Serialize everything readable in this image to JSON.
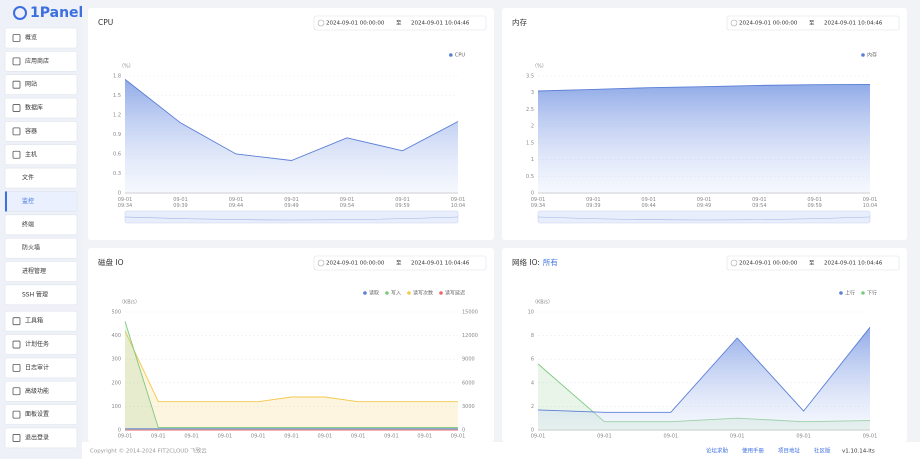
{
  "sidebar": {
    "logo": "1Panel",
    "items": [
      "概览",
      "应用商店",
      "网站",
      "数据库",
      "容器",
      "主机",
      "文件",
      "监控",
      "终端",
      "防火墙",
      "进程管理",
      "SSH 管理",
      "工具箱",
      "计划任务",
      "日志审计",
      "高级功能",
      "面板设置",
      "退出登录"
    ]
  },
  "chart_data": [
    {
      "type": "line",
      "title": "CPU",
      "range": [
        "2024-09-01 00:00:00",
        "至",
        "2024-09-01 10:04:46"
      ],
      "y_label": "（%）",
      "categories": [
        "09-01 09:34",
        "09-01 09:39",
        "09-01 09:44",
        "09-01 09:49",
        "09-01 09:54",
        "09-01 09:59",
        "09-01 10:04"
      ],
      "ylim": [
        0,
        1.8
      ],
      "yticks": [
        0,
        0.3,
        0.6,
        0.9,
        1.2,
        1.5,
        1.8
      ],
      "series": [
        {
          "name": "CPU",
          "color": "#5b7fd6",
          "values": [
            1.75,
            1.08,
            0.6,
            0.5,
            0.85,
            0.65,
            1.1
          ]
        }
      ]
    },
    {
      "type": "line",
      "title": "内存",
      "range": [
        "2024-09-01 00:00:00",
        "至",
        "2024-09-01 10:04:46"
      ],
      "y_label": "（%）",
      "categories": [
        "09-01 09:34",
        "09-01 09:39",
        "09-01 09:44",
        "09-01 09:49",
        "09-01 09:54",
        "09-01 09:59",
        "09-01 10:04"
      ],
      "ylim": [
        0,
        3.5
      ],
      "yticks": [
        0,
        0.5,
        1,
        1.5,
        2,
        2.5,
        3,
        3.5
      ],
      "series": [
        {
          "name": "内存",
          "color": "#5b7fd6",
          "values": [
            3.05,
            3.1,
            3.15,
            3.18,
            3.22,
            3.24,
            3.25
          ]
        }
      ]
    },
    {
      "type": "line",
      "title": "磁盘 IO",
      "range": [
        "2024-09-01 00:00:00",
        "至",
        "2024-09-01 10:04:46"
      ],
      "y_label": "（KB/s）",
      "categories": [
        "09-01",
        "09-01",
        "09-01",
        "09-01",
        "09-01",
        "09-01",
        "09-01",
        "09-01",
        "09-01",
        "09-01",
        "09-01"
      ],
      "ylim": [
        0,
        500
      ],
      "yticks": [
        0,
        100,
        200,
        300,
        400,
        500
      ],
      "y2lim": [
        0,
        15000
      ],
      "y2ticks": [
        0,
        3000,
        6000,
        9000,
        12000,
        15000
      ],
      "series": [
        {
          "name": "读取",
          "color": "#5b7fd6",
          "values": [
            5,
            5,
            5,
            5,
            5,
            5,
            5,
            5,
            5,
            5,
            5
          ]
        },
        {
          "name": "写入",
          "color": "#7fc97f",
          "values": [
            460,
            10,
            10,
            10,
            10,
            10,
            10,
            10,
            10,
            10,
            10
          ]
        },
        {
          "name": "读写次数",
          "color": "#f2c94c",
          "axis": "y2",
          "values": [
            12600,
            3600,
            3600,
            3600,
            3600,
            4200,
            4200,
            3600,
            3600,
            3600,
            3600
          ]
        },
        {
          "name": "读写延迟",
          "color": "#ee6666",
          "values": [
            0,
            0,
            0,
            0,
            0,
            0,
            0,
            0,
            0,
            0,
            0
          ]
        }
      ]
    },
    {
      "type": "line",
      "title": "网络 IO:",
      "title_link": "所有",
      "range": [
        "2024-09-01 00:00:00",
        "至",
        "2024-09-01 10:04:46"
      ],
      "y_label": "（KB/s）",
      "categories": [
        "09-01",
        "09-01",
        "09-01",
        "09-01",
        "09-01",
        "09-01"
      ],
      "ylim": [
        0,
        10
      ],
      "yticks": [
        0,
        2,
        4,
        6,
        8,
        10
      ],
      "series": [
        {
          "name": "上行",
          "color": "#5b7fd6",
          "values": [
            1.7,
            1.5,
            1.5,
            7.8,
            1.6,
            8.7
          ]
        },
        {
          "name": "下行",
          "color": "#7fc97f",
          "values": [
            5.6,
            0.7,
            0.7,
            1.0,
            0.7,
            0.8
          ]
        }
      ]
    }
  ],
  "footer": {
    "copyright": "Copyright © 2014-2024 FIT2CLOUD 飞致云",
    "links": [
      "论坛求助",
      "使用手册",
      "项目地址",
      "社区版",
      "v1.10.14-lts"
    ]
  }
}
